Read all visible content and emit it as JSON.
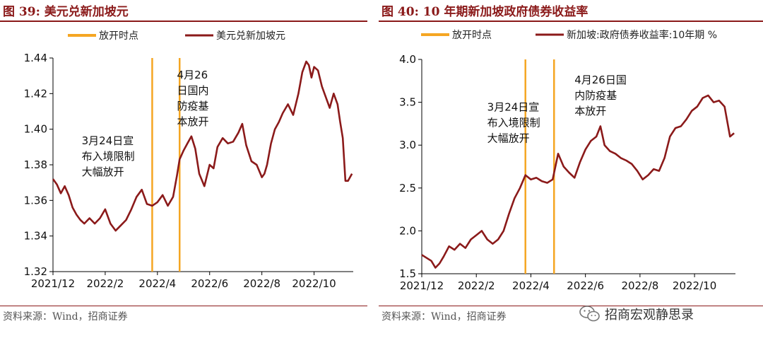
{
  "watermark": {
    "text": "招商宏观静思录"
  },
  "colors": {
    "line": "#8b1a1a",
    "vline": "#f5a623",
    "accent": "#8b1a1a"
  },
  "chart_data": [
    {
      "type": "line",
      "fig_label": "图 39:",
      "title": "美元兑新加坡元",
      "source": "资料来源：Wind，招商证券",
      "legend": {
        "placement": "top",
        "vline_label": "放开时点",
        "series_label": "美元兑新加坡元"
      },
      "ylim": [
        1.32,
        1.44
      ],
      "yticks": [
        "1.32",
        "1.34",
        "1.36",
        "1.38",
        "1.40",
        "1.42",
        "1.44"
      ],
      "xlim": [
        0,
        11.5
      ],
      "xtick_pos": [
        0,
        2,
        4,
        6,
        8,
        10
      ],
      "xticks": [
        "2021/12",
        "2022/2",
        "2022/4",
        "2022/6",
        "2022/8",
        "2022/10"
      ],
      "vlines": [
        3.8,
        4.85
      ],
      "annotations": [
        {
          "x": 1.1,
          "y": 1.3915,
          "lines": [
            "3月24日宣",
            "布入境限制",
            "大幅放开"
          ]
        },
        {
          "x": 4.75,
          "y": 1.4285,
          "lines": [
            "4月26",
            "日国内",
            "防疫基",
            "本放开"
          ]
        }
      ],
      "series": [
        {
          "name": "美元兑新加坡元",
          "x": [
            0,
            0.15,
            0.3,
            0.45,
            0.6,
            0.75,
            0.9,
            1.05,
            1.2,
            1.4,
            1.6,
            1.8,
            2.0,
            2.2,
            2.4,
            2.6,
            2.8,
            3.0,
            3.2,
            3.4,
            3.6,
            3.8,
            4.0,
            4.2,
            4.4,
            4.6,
            4.75,
            4.85,
            5.0,
            5.15,
            5.3,
            5.45,
            5.6,
            5.8,
            6.0,
            6.15,
            6.3,
            6.5,
            6.7,
            6.9,
            7.1,
            7.25,
            7.4,
            7.6,
            7.8,
            8.0,
            8.1,
            8.2,
            8.35,
            8.5,
            8.65,
            8.8,
            9.0,
            9.2,
            9.4,
            9.55,
            9.7,
            9.8,
            9.9,
            10.0,
            10.15,
            10.3,
            10.45,
            10.6,
            10.75,
            10.9,
            11.0,
            11.1,
            11.2,
            11.3,
            11.45
          ],
          "values": [
            1.372,
            1.369,
            1.364,
            1.368,
            1.363,
            1.356,
            1.352,
            1.349,
            1.347,
            1.35,
            1.347,
            1.35,
            1.355,
            1.347,
            1.343,
            1.346,
            1.349,
            1.355,
            1.362,
            1.366,
            1.358,
            1.357,
            1.359,
            1.363,
            1.357,
            1.362,
            1.374,
            1.383,
            1.388,
            1.392,
            1.396,
            1.389,
            1.375,
            1.368,
            1.38,
            1.378,
            1.39,
            1.395,
            1.392,
            1.393,
            1.398,
            1.403,
            1.391,
            1.382,
            1.38,
            1.373,
            1.375,
            1.38,
            1.392,
            1.4,
            1.404,
            1.409,
            1.414,
            1.408,
            1.42,
            1.432,
            1.438,
            1.436,
            1.429,
            1.435,
            1.433,
            1.424,
            1.418,
            1.412,
            1.42,
            1.414,
            1.404,
            1.395,
            1.371,
            1.371,
            1.375
          ]
        }
      ]
    },
    {
      "type": "line",
      "fig_label": "图 40:",
      "title": "10 年期新加坡政府债券收益率",
      "source": "资料来源：Wind，招商证券",
      "legend": {
        "placement": "top",
        "vline_label": "放开时点",
        "series_label": "新加坡:政府债券收益率:10年期 %"
      },
      "ylim": [
        1.5,
        4.0
      ],
      "yticks": [
        "1.5",
        "2.0",
        "2.5",
        "3.0",
        "3.5",
        "4.0"
      ],
      "xlim": [
        0,
        11.5
      ],
      "xtick_pos": [
        0,
        2,
        4,
        6,
        8,
        10
      ],
      "xticks": [
        "2021/12",
        "2022/2",
        "2022/4",
        "2022/6",
        "2022/8",
        "2022/10"
      ],
      "vlines": [
        3.8,
        4.85
      ],
      "annotations": [
        {
          "x": 2.4,
          "y": 3.4,
          "lines": [
            "3月24日宣",
            "布入境限制",
            "大幅放开"
          ]
        },
        {
          "x": 5.6,
          "y": 3.72,
          "lines": [
            "4月26日国",
            "内防疫基",
            "本放开"
          ]
        }
      ],
      "series": [
        {
          "name": "新加坡:政府债券收益率:10年期 %",
          "x": [
            0,
            0.2,
            0.35,
            0.5,
            0.65,
            0.8,
            1.0,
            1.2,
            1.4,
            1.6,
            1.8,
            2.0,
            2.2,
            2.4,
            2.6,
            2.8,
            3.0,
            3.2,
            3.4,
            3.6,
            3.8,
            4.0,
            4.2,
            4.4,
            4.6,
            4.8,
            5.0,
            5.2,
            5.4,
            5.6,
            5.8,
            6.0,
            6.2,
            6.4,
            6.55,
            6.7,
            6.9,
            7.1,
            7.3,
            7.5,
            7.7,
            7.9,
            8.1,
            8.3,
            8.5,
            8.7,
            8.9,
            9.1,
            9.3,
            9.5,
            9.7,
            9.9,
            10.1,
            10.3,
            10.5,
            10.7,
            10.9,
            11.1,
            11.3,
            11.45
          ],
          "values": [
            1.72,
            1.68,
            1.65,
            1.57,
            1.62,
            1.7,
            1.82,
            1.78,
            1.85,
            1.8,
            1.9,
            1.95,
            2.0,
            1.9,
            1.85,
            1.9,
            2.0,
            2.2,
            2.38,
            2.5,
            2.65,
            2.6,
            2.62,
            2.58,
            2.56,
            2.6,
            2.9,
            2.75,
            2.68,
            2.62,
            2.8,
            2.95,
            3.05,
            3.1,
            3.22,
            3.0,
            2.93,
            2.9,
            2.85,
            2.82,
            2.78,
            2.7,
            2.6,
            2.65,
            2.72,
            2.7,
            2.85,
            3.1,
            3.2,
            3.22,
            3.3,
            3.4,
            3.45,
            3.55,
            3.58,
            3.5,
            3.52,
            3.45,
            3.1,
            3.14
          ]
        }
      ]
    }
  ]
}
